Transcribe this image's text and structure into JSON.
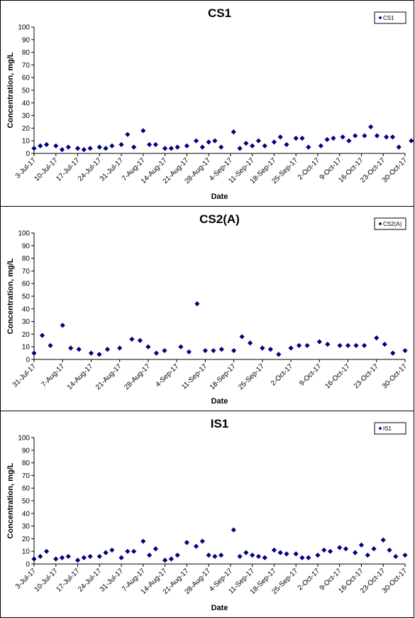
{
  "chart_data": [
    {
      "type": "scatter",
      "title": "CS1",
      "xlabel": "Date",
      "ylabel": "Concentration, mg/L",
      "ylim": [
        0,
        100
      ],
      "yticks": [
        0,
        10,
        20,
        30,
        40,
        50,
        60,
        70,
        80,
        90,
        100
      ],
      "xlim": [
        "2017-07-03",
        "2017-10-30"
      ],
      "xtick_labels": [
        "3-Jul-17",
        "10-Jul-17",
        "17-Jul-17",
        "24-Jul-17",
        "31-Jul-17",
        "7-Aug-17",
        "14-Aug-17",
        "21-Aug-17",
        "28-Aug-17",
        "4-Sep-17",
        "11-Sep-17",
        "18-Sep-17",
        "25-Sep-17",
        "2-Oct-17",
        "9-Oct-17",
        "16-Oct-17",
        "23-Oct-17",
        "30-Oct-17"
      ],
      "grid": false,
      "legend_position": "top-right",
      "marker_color": "#000080",
      "series": [
        {
          "name": "CS1",
          "points": [
            [
              "2017-07-03",
              4
            ],
            [
              "2017-07-05",
              6
            ],
            [
              "2017-07-07",
              7
            ],
            [
              "2017-07-10",
              6
            ],
            [
              "2017-07-12",
              3
            ],
            [
              "2017-07-14",
              5
            ],
            [
              "2017-07-17",
              4
            ],
            [
              "2017-07-19",
              3
            ],
            [
              "2017-07-21",
              4
            ],
            [
              "2017-07-24",
              5
            ],
            [
              "2017-07-26",
              4
            ],
            [
              "2017-07-28",
              6
            ],
            [
              "2017-07-31",
              7
            ],
            [
              "2017-08-02",
              15
            ],
            [
              "2017-08-04",
              5
            ],
            [
              "2017-08-07",
              18
            ],
            [
              "2017-08-09",
              7
            ],
            [
              "2017-08-11",
              7
            ],
            [
              "2017-08-14",
              4
            ],
            [
              "2017-08-16",
              4
            ],
            [
              "2017-08-18",
              5
            ],
            [
              "2017-08-21",
              6
            ],
            [
              "2017-08-24",
              10
            ],
            [
              "2017-08-26",
              5
            ],
            [
              "2017-08-28",
              9
            ],
            [
              "2017-08-30",
              10
            ],
            [
              "2017-09-01",
              5
            ],
            [
              "2017-09-05",
              17
            ],
            [
              "2017-09-07",
              4
            ],
            [
              "2017-09-09",
              8
            ],
            [
              "2017-09-11",
              6
            ],
            [
              "2017-09-13",
              10
            ],
            [
              "2017-09-15",
              6
            ],
            [
              "2017-09-18",
              9
            ],
            [
              "2017-09-20",
              13
            ],
            [
              "2017-09-22",
              7
            ],
            [
              "2017-09-25",
              12
            ],
            [
              "2017-09-27",
              12
            ],
            [
              "2017-09-29",
              5
            ],
            [
              "2017-10-03",
              6
            ],
            [
              "2017-10-05",
              11
            ],
            [
              "2017-10-07",
              12
            ],
            [
              "2017-10-10",
              13
            ],
            [
              "2017-10-12",
              10
            ],
            [
              "2017-10-14",
              14
            ],
            [
              "2017-10-17",
              14
            ],
            [
              "2017-10-19",
              21
            ],
            [
              "2017-10-21",
              14
            ],
            [
              "2017-10-24",
              13
            ],
            [
              "2017-10-26",
              13
            ],
            [
              "2017-10-28",
              5
            ],
            [
              "2017-11-01",
              10
            ]
          ]
        }
      ]
    },
    {
      "type": "scatter",
      "title": "CS2(A)",
      "xlabel": "Date",
      "ylabel": "Concentration, mg/L",
      "ylim": [
        0,
        100
      ],
      "yticks": [
        0,
        10,
        20,
        30,
        40,
        50,
        60,
        70,
        80,
        90,
        100
      ],
      "xlim": [
        "2017-07-31",
        "2017-10-30"
      ],
      "xtick_labels": [
        "31-Jul-17",
        "7-Aug-17",
        "14-Aug-17",
        "21-Aug-17",
        "28-Aug-17",
        "4-Sep-17",
        "11-Sep-17",
        "18-Sep-17",
        "25-Sep-17",
        "2-Oct-17",
        "9-Oct-17",
        "16-Oct-17",
        "23-Oct-17",
        "30-Oct-17"
      ],
      "grid": false,
      "legend_position": "top-right",
      "marker_color": "#000080",
      "series": [
        {
          "name": "CS2(A)",
          "points": [
            [
              "2017-07-31",
              5
            ],
            [
              "2017-08-02",
              19
            ],
            [
              "2017-08-04",
              11
            ],
            [
              "2017-08-07",
              27
            ],
            [
              "2017-08-09",
              9
            ],
            [
              "2017-08-11",
              8
            ],
            [
              "2017-08-14",
              5
            ],
            [
              "2017-08-16",
              4
            ],
            [
              "2017-08-18",
              8
            ],
            [
              "2017-08-21",
              9
            ],
            [
              "2017-08-24",
              16
            ],
            [
              "2017-08-26",
              15
            ],
            [
              "2017-08-28",
              10
            ],
            [
              "2017-08-30",
              5
            ],
            [
              "2017-09-01",
              7
            ],
            [
              "2017-09-05",
              10
            ],
            [
              "2017-09-07",
              6
            ],
            [
              "2017-09-09",
              44
            ],
            [
              "2017-09-11",
              7
            ],
            [
              "2017-09-13",
              7
            ],
            [
              "2017-09-15",
              8
            ],
            [
              "2017-09-18",
              7
            ],
            [
              "2017-09-20",
              18
            ],
            [
              "2017-09-22",
              13
            ],
            [
              "2017-09-25",
              9
            ],
            [
              "2017-09-27",
              8
            ],
            [
              "2017-09-29",
              4
            ],
            [
              "2017-10-02",
              9
            ],
            [
              "2017-10-04",
              11
            ],
            [
              "2017-10-06",
              11
            ],
            [
              "2017-10-09",
              14
            ],
            [
              "2017-10-11",
              12
            ],
            [
              "2017-10-14",
              11
            ],
            [
              "2017-10-16",
              11
            ],
            [
              "2017-10-18",
              11
            ],
            [
              "2017-10-20",
              11
            ],
            [
              "2017-10-23",
              17
            ],
            [
              "2017-10-25",
              12
            ],
            [
              "2017-10-27",
              5
            ],
            [
              "2017-10-30",
              7
            ]
          ]
        }
      ]
    },
    {
      "type": "scatter",
      "title": "IS1",
      "xlabel": "Date",
      "ylabel": "Concentration, mg/L",
      "ylim": [
        0,
        100
      ],
      "yticks": [
        0,
        10,
        20,
        30,
        40,
        50,
        60,
        70,
        80,
        90,
        100
      ],
      "xlim": [
        "2017-07-03",
        "2017-10-30"
      ],
      "xtick_labels": [
        "3-Jul-17",
        "10-Jul-17",
        "17-Jul-17",
        "24-Jul-17",
        "31-Jul-17",
        "7-Aug-17",
        "14-Aug-17",
        "21-Aug-17",
        "28-Aug-17",
        "4-Sep-17",
        "11-Sep-17",
        "18-Sep-17",
        "25-Sep-17",
        "2-Oct-17",
        "9-Oct-17",
        "16-Oct-17",
        "23-Oct-17",
        "30-Oct-17"
      ],
      "grid": false,
      "legend_position": "top-right",
      "marker_color": "#000080",
      "series": [
        {
          "name": "IS1",
          "points": [
            [
              "2017-07-03",
              4
            ],
            [
              "2017-07-05",
              6
            ],
            [
              "2017-07-07",
              10
            ],
            [
              "2017-07-10",
              4
            ],
            [
              "2017-07-12",
              5
            ],
            [
              "2017-07-14",
              6
            ],
            [
              "2017-07-17",
              3
            ],
            [
              "2017-07-19",
              5
            ],
            [
              "2017-07-21",
              6
            ],
            [
              "2017-07-24",
              6
            ],
            [
              "2017-07-26",
              9
            ],
            [
              "2017-07-28",
              11
            ],
            [
              "2017-07-31",
              5
            ],
            [
              "2017-08-02",
              10
            ],
            [
              "2017-08-04",
              10
            ],
            [
              "2017-08-07",
              18
            ],
            [
              "2017-08-09",
              7
            ],
            [
              "2017-08-11",
              12
            ],
            [
              "2017-08-14",
              3
            ],
            [
              "2017-08-16",
              4
            ],
            [
              "2017-08-18",
              7
            ],
            [
              "2017-08-21",
              17
            ],
            [
              "2017-08-24",
              14
            ],
            [
              "2017-08-26",
              18
            ],
            [
              "2017-08-28",
              7
            ],
            [
              "2017-08-30",
              6
            ],
            [
              "2017-09-01",
              7
            ],
            [
              "2017-09-05",
              27
            ],
            [
              "2017-09-07",
              6
            ],
            [
              "2017-09-09",
              9
            ],
            [
              "2017-09-11",
              7
            ],
            [
              "2017-09-13",
              6
            ],
            [
              "2017-09-15",
              5
            ],
            [
              "2017-09-18",
              11
            ],
            [
              "2017-09-20",
              9
            ],
            [
              "2017-09-22",
              8
            ],
            [
              "2017-09-25",
              8
            ],
            [
              "2017-09-27",
              5
            ],
            [
              "2017-09-29",
              5
            ],
            [
              "2017-10-02",
              7
            ],
            [
              "2017-10-04",
              11
            ],
            [
              "2017-10-06",
              10
            ],
            [
              "2017-10-09",
              13
            ],
            [
              "2017-10-11",
              12
            ],
            [
              "2017-10-14",
              9
            ],
            [
              "2017-10-16",
              15
            ],
            [
              "2017-10-18",
              7
            ],
            [
              "2017-10-20",
              12
            ],
            [
              "2017-10-23",
              19
            ],
            [
              "2017-10-25",
              11
            ],
            [
              "2017-10-27",
              6
            ],
            [
              "2017-10-30",
              7
            ]
          ]
        }
      ]
    }
  ]
}
